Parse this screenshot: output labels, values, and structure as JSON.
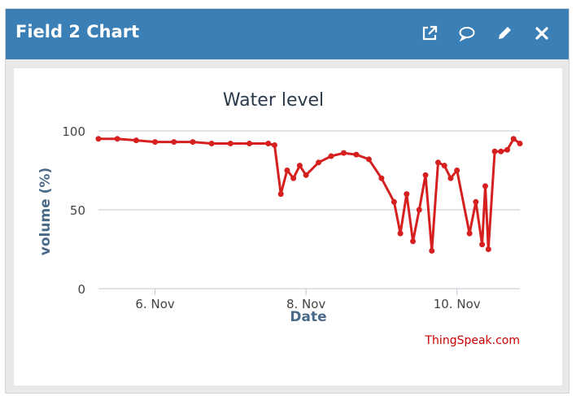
{
  "widget": {
    "title": "Field 2 Chart",
    "icons": [
      "external-link-icon",
      "comment-icon",
      "pencil-icon",
      "close-icon"
    ]
  },
  "colors": {
    "header": "#3a7fb6",
    "series": "#d62020",
    "credit": "#cc0000",
    "axis_title": "#4a6a8a"
  },
  "chart_data": {
    "type": "line",
    "title": "Water level",
    "xlabel": "Date",
    "ylabel": "volume (%)",
    "ylim": [
      0,
      100
    ],
    "yticks": [
      0,
      50,
      100
    ],
    "xlim": [
      "2023-11-05 06:00",
      "2023-11-10 20:00"
    ],
    "xticks": [
      {
        "value": "2023-11-06 00:00",
        "label": "6. Nov"
      },
      {
        "value": "2023-11-08 00:00",
        "label": "8. Nov"
      },
      {
        "value": "2023-11-10 00:00",
        "label": "10. Nov"
      }
    ],
    "grid": true,
    "legend": "none",
    "credit": "ThingSpeak.com",
    "series": [
      {
        "x": [
          "2023-11-05 06:00",
          "2023-11-05 12:00",
          "2023-11-05 18:00",
          "2023-11-06 00:00",
          "2023-11-06 06:00",
          "2023-11-06 12:00",
          "2023-11-06 18:00",
          "2023-11-07 00:00",
          "2023-11-07 06:00",
          "2023-11-07 12:00",
          "2023-11-07 14:00",
          "2023-11-07 16:00",
          "2023-11-07 18:00",
          "2023-11-07 20:00",
          "2023-11-07 22:00",
          "2023-11-08 00:00",
          "2023-11-08 04:00",
          "2023-11-08 08:00",
          "2023-11-08 12:00",
          "2023-11-08 16:00",
          "2023-11-08 20:00",
          "2023-11-09 00:00",
          "2023-11-09 04:00",
          "2023-11-09 06:00",
          "2023-11-09 08:00",
          "2023-11-09 10:00",
          "2023-11-09 12:00",
          "2023-11-09 14:00",
          "2023-11-09 16:00",
          "2023-11-09 18:00",
          "2023-11-09 20:00",
          "2023-11-09 22:00",
          "2023-11-10 00:00",
          "2023-11-10 04:00",
          "2023-11-10 06:00",
          "2023-11-10 08:00",
          "2023-11-10 09:00",
          "2023-11-10 10:00",
          "2023-11-10 12:00",
          "2023-11-10 14:00",
          "2023-11-10 16:00",
          "2023-11-10 18:00",
          "2023-11-10 20:00"
        ],
        "y": [
          95,
          95,
          94,
          93,
          93,
          93,
          92,
          92,
          92,
          92,
          91,
          60,
          75,
          70,
          78,
          72,
          80,
          84,
          86,
          85,
          82,
          70,
          55,
          35,
          60,
          30,
          50,
          72,
          24,
          80,
          78,
          70,
          75,
          35,
          55,
          28,
          65,
          25,
          87,
          87,
          88,
          95,
          92
        ]
      }
    ]
  }
}
